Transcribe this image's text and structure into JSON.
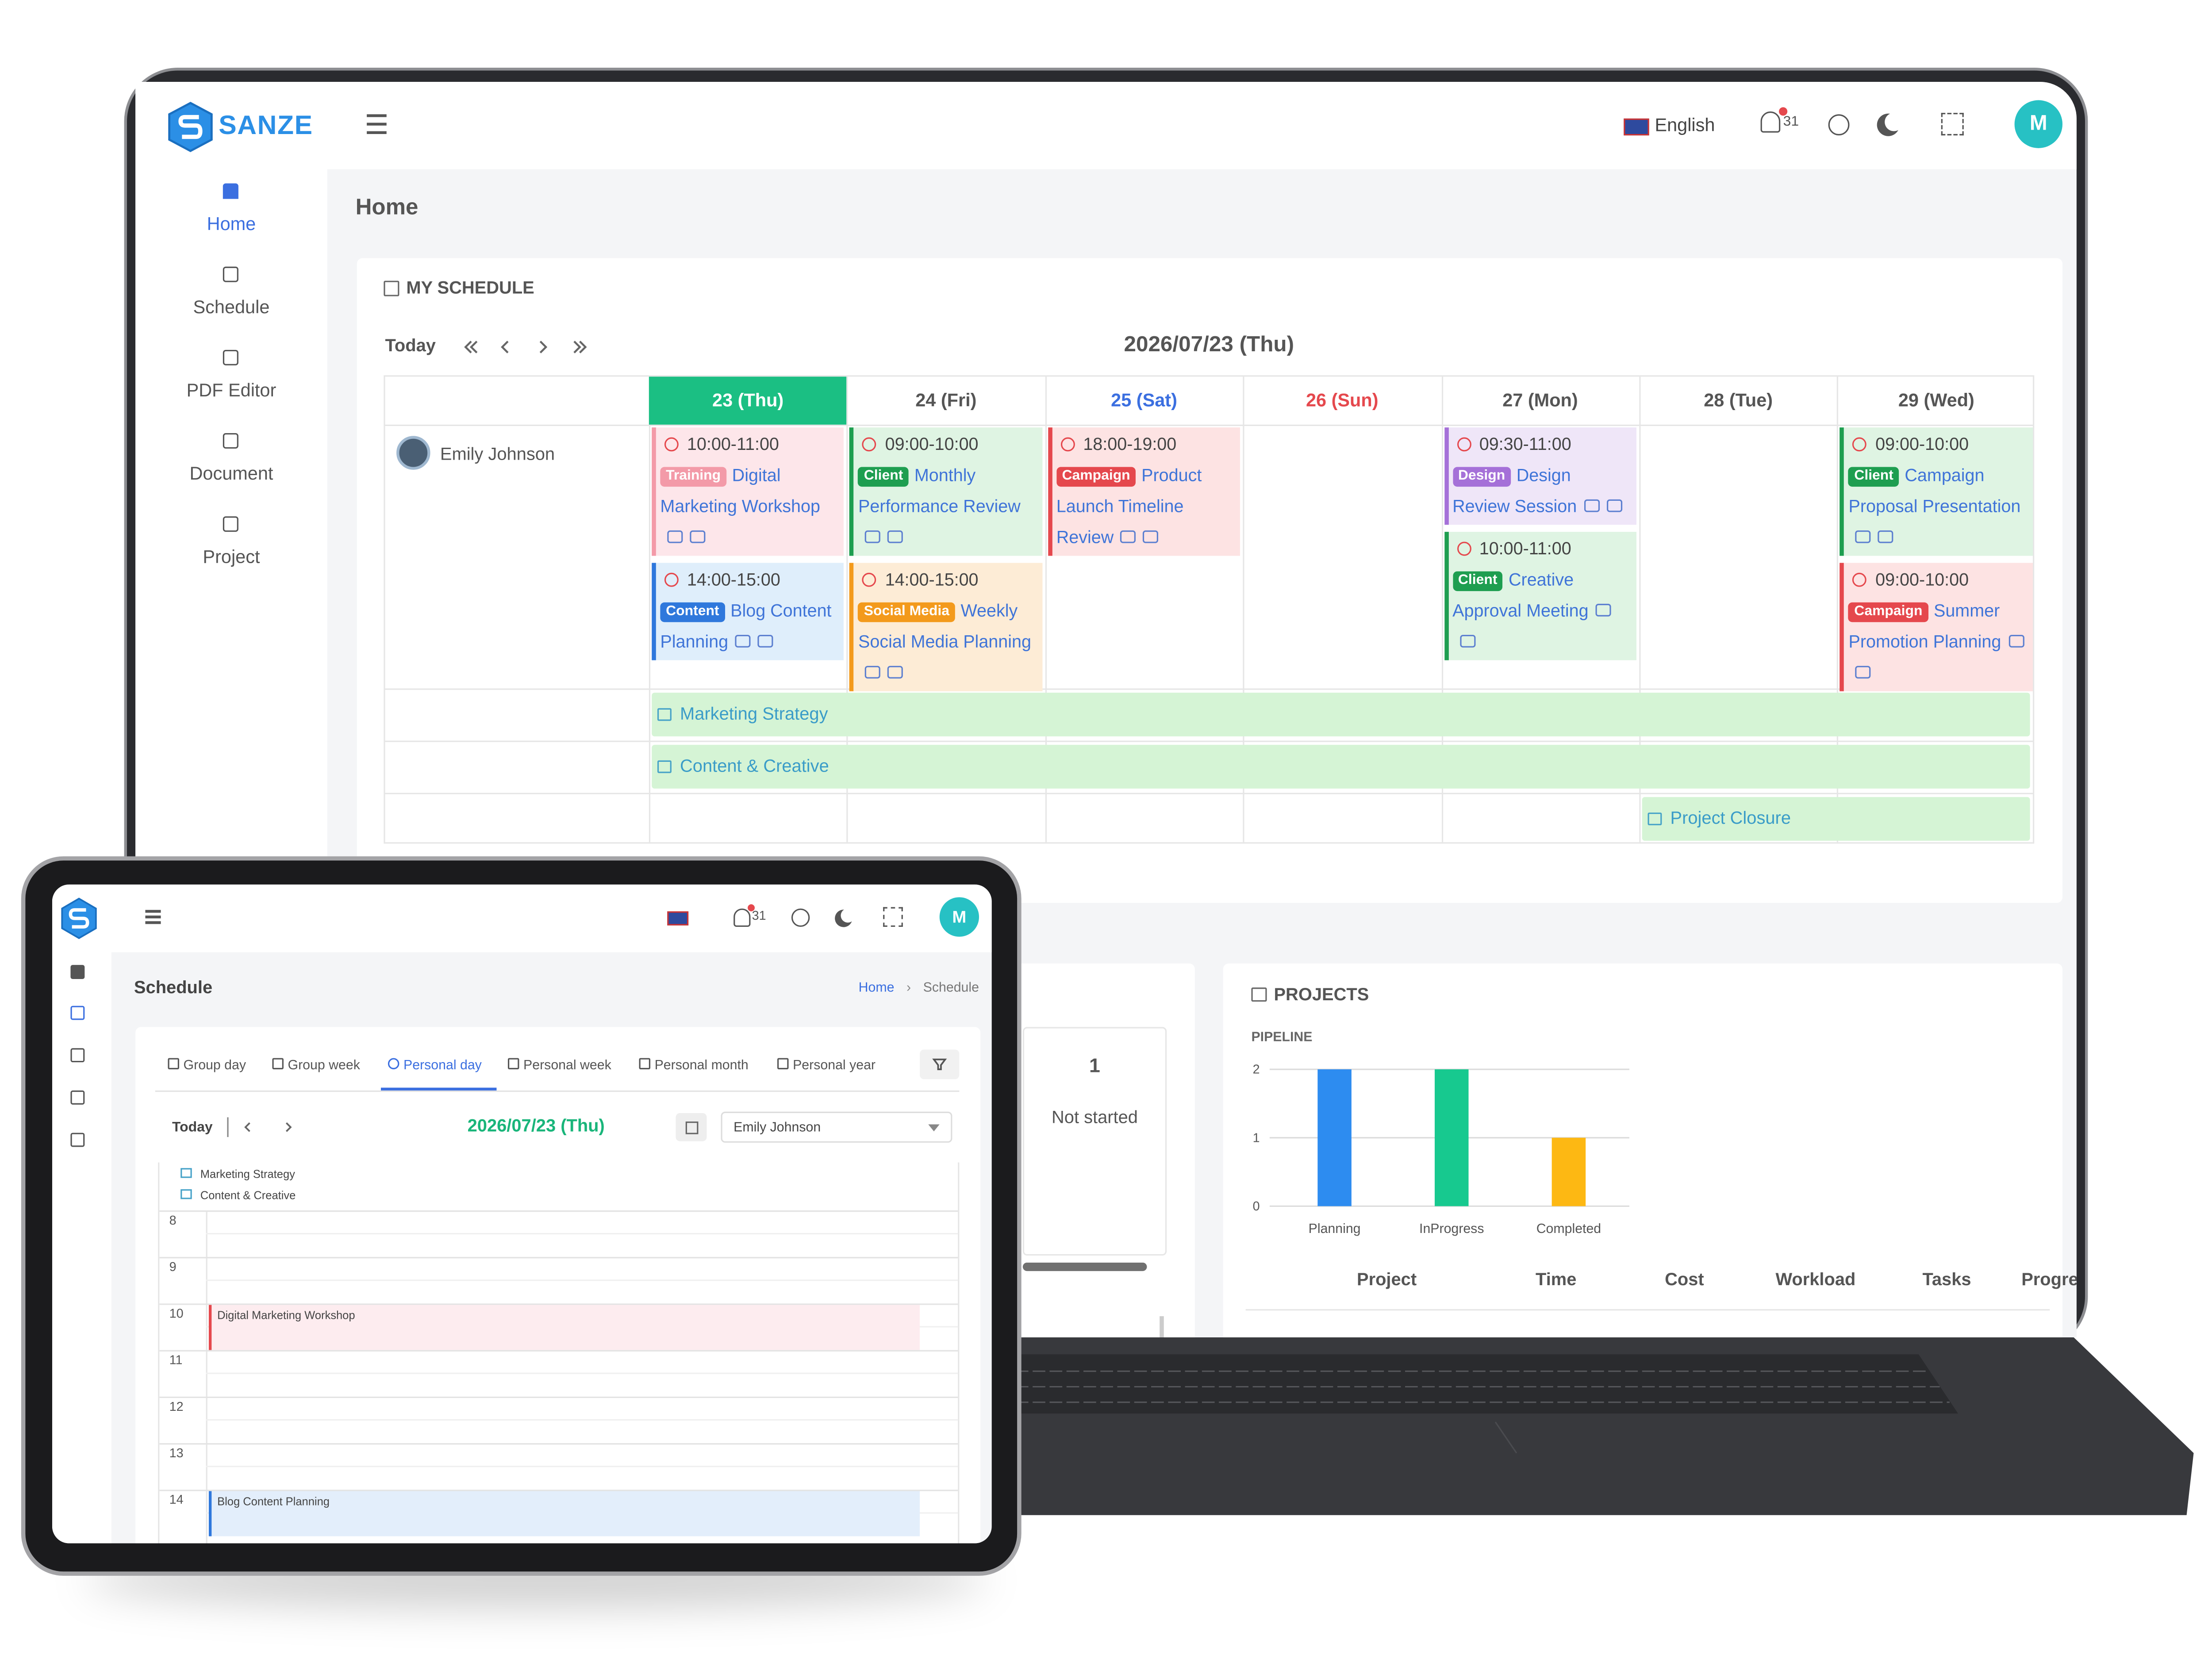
{
  "laptop": {
    "brand": "SANZE",
    "nav": [
      "Home",
      "Schedule",
      "PDF Editor",
      "Document",
      "Project"
    ],
    "language": "English",
    "notifications": 31,
    "avatar": "M",
    "page_title": "Home",
    "schedule": {
      "title": "MY SCHEDULE",
      "today": "Today",
      "date": "2026/07/23 (Thu)",
      "person": "Emily Johnson",
      "days": [
        {
          "label": "23 (Thu)",
          "events": [
            {
              "time": "10:00-11:00",
              "tag": "Training",
              "title": "Digital Marketing Workshop"
            },
            {
              "time": "14:00-15:00",
              "tag": "Content",
              "title": "Blog Content Planning"
            }
          ]
        },
        {
          "label": "24 (Fri)",
          "events": [
            {
              "time": "09:00-10:00",
              "tag": "Client",
              "title": "Monthly Performance Review"
            },
            {
              "time": "14:00-15:00",
              "tag": "Social Media",
              "title": "Weekly Social Media Planning"
            }
          ]
        },
        {
          "label": "25 (Sat)",
          "events": [
            {
              "time": "18:00-19:00",
              "tag": "Campaign",
              "title": "Product Launch Timeline Review"
            }
          ]
        },
        {
          "label": "26 (Sun)",
          "events": []
        },
        {
          "label": "27 (Mon)",
          "events": [
            {
              "time": "09:30-11:00",
              "tag": "Design",
              "title": "Design Review Session"
            },
            {
              "time": "10:00-11:00",
              "tag": "Client",
              "title": "Creative Approval Meeting"
            }
          ]
        },
        {
          "label": "28 (Tue)",
          "events": []
        },
        {
          "label": "29 (Wed)",
          "events": [
            {
              "time": "09:00-10:00",
              "tag": "Client",
              "title": "Campaign Proposal Presentation"
            },
            {
              "time": "09:00-10:00",
              "tag": "Campaign",
              "title": "Summer Promotion Planning"
            }
          ]
        }
      ],
      "projects": [
        "Marketing Strategy",
        "Content & Creative",
        "Project Closure"
      ],
      "tag_colors": {
        "Training": {
          "tag": "#f39aa8",
          "bg": "#fde6ea"
        },
        "Content": {
          "tag": "#2f78dc",
          "bg": "#dfeefb"
        },
        "Client": {
          "tag": "#1e9e50",
          "bg": "#dff4e3"
        },
        "Social Media": {
          "tag": "#f39a1c",
          "bg": "#fdecd6"
        },
        "Campaign": {
          "tag": "#e5484d",
          "bg": "#fde3e3"
        },
        "Design": {
          "tag": "#a570d8",
          "bg": "#efe6f8"
        }
      }
    },
    "stat": {
      "value": 1,
      "label": "Not started"
    },
    "projects_panel": {
      "title": "PROJECTS",
      "chart": {
        "type": "bar",
        "title": "PIPELINE",
        "categories": [
          "Planning",
          "InProgress",
          "Completed"
        ],
        "values": [
          2,
          2,
          1
        ],
        "colors": [
          "#2d8cf0",
          "#17c98f",
          "#fdb813"
        ],
        "ylim": [
          0,
          2
        ],
        "yticks": [
          0,
          1,
          2
        ],
        "grid": true
      },
      "table_headers": [
        "Project",
        "Time",
        "Cost",
        "Workload",
        "Tasks",
        "Progress"
      ]
    }
  },
  "tablet": {
    "notifications": 31,
    "avatar": "M",
    "page_title": "Schedule",
    "breadcrumb": [
      "Home",
      "Schedule"
    ],
    "tabs": [
      "Group day",
      "Group week",
      "Personal day",
      "Personal week",
      "Personal month",
      "Personal year"
    ],
    "today": "Today",
    "date": "2026/07/23 (Thu)",
    "person": "Emily Johnson",
    "all_day": [
      "Marketing Strategy",
      "Content & Creative"
    ],
    "hours": [
      {
        "hour": 8
      },
      {
        "hour": 9
      },
      {
        "hour": 10,
        "event": "Digital Marketing Workshop",
        "color": "#e5484d",
        "bg": "#fdecef"
      },
      {
        "hour": 11
      },
      {
        "hour": 12
      },
      {
        "hour": 13
      },
      {
        "hour": 14,
        "event": "Blog Content Planning",
        "color": "#2f78dc",
        "bg": "#e3eefb"
      }
    ]
  }
}
